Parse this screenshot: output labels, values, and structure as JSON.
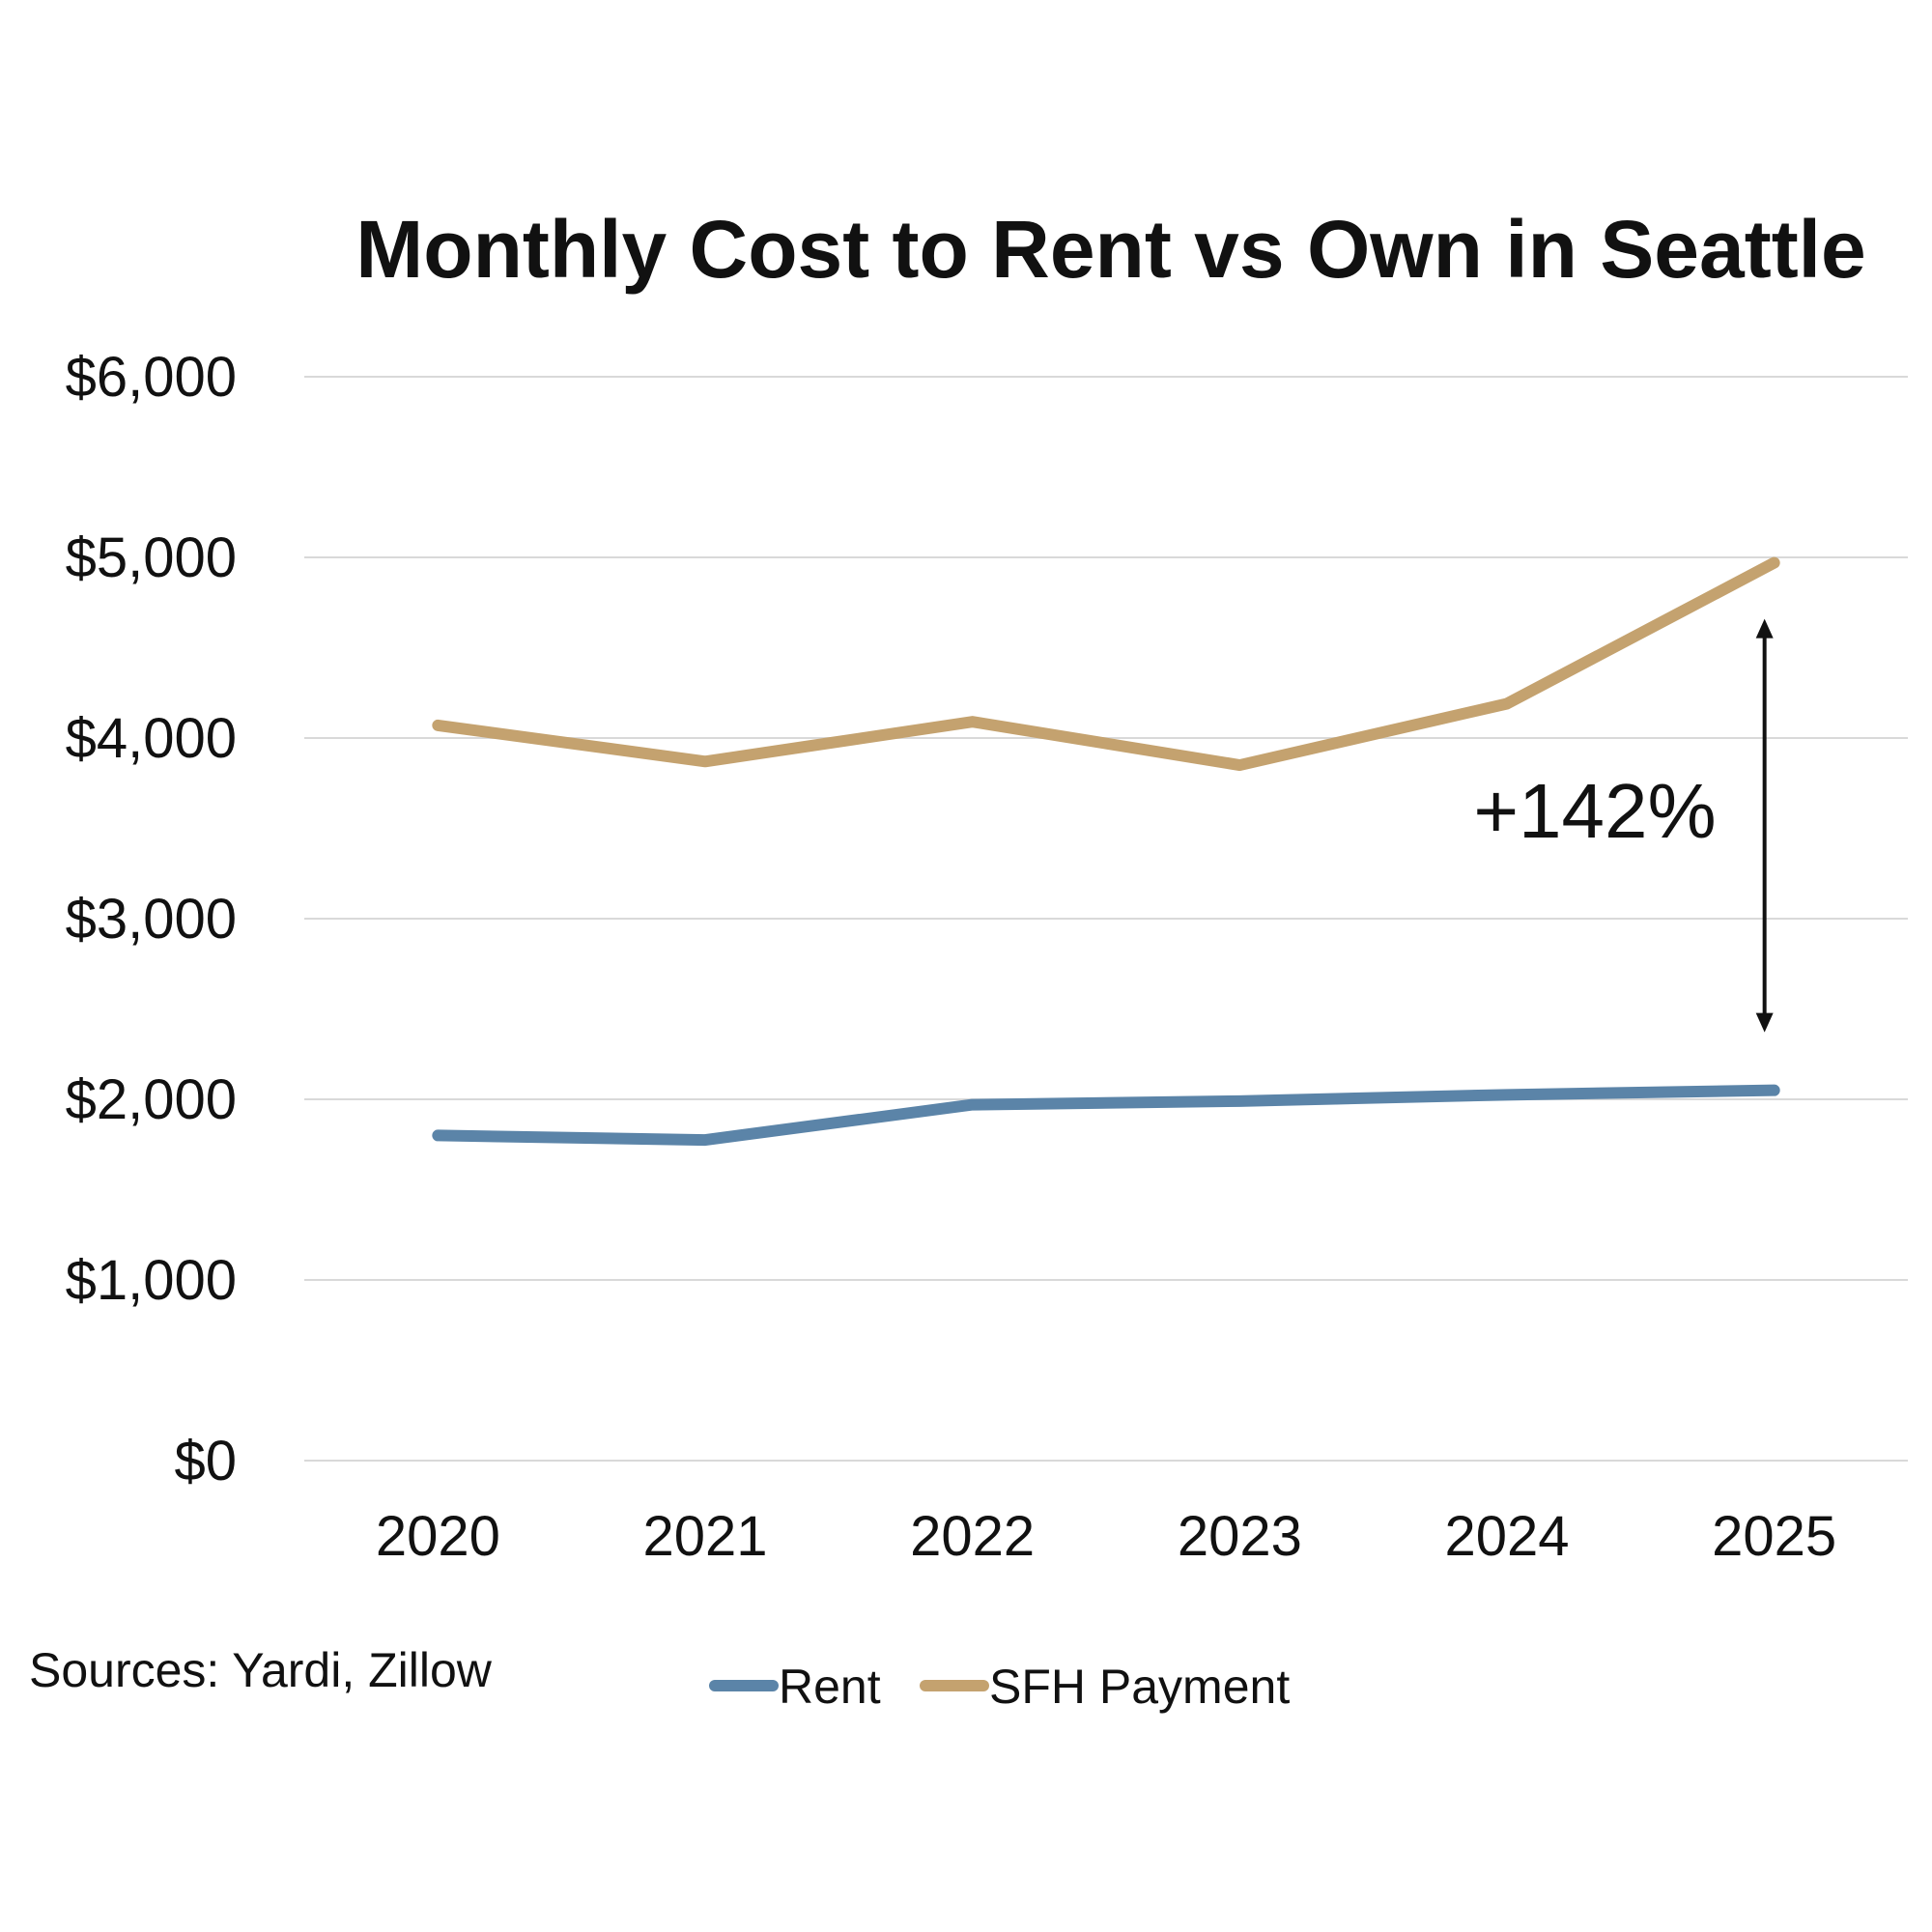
{
  "chart_data": {
    "type": "line",
    "title": "Monthly Cost to Rent vs Own in Seattle",
    "xlabel": "",
    "ylabel": "",
    "categories": [
      "2020",
      "2021",
      "2022",
      "2023",
      "2024",
      "2025"
    ],
    "series": [
      {
        "name": "Rent",
        "color": "#5b84a8",
        "values": [
          1800,
          1775,
          1970,
          1990,
          2025,
          2050
        ]
      },
      {
        "name": "SFH Payment",
        "color": "#c4a26f",
        "values": [
          4070,
          3870,
          4090,
          3850,
          4190,
          4970
        ]
      }
    ],
    "ylim": [
      0,
      6000
    ],
    "yticks": [
      0,
      1000,
      2000,
      3000,
      4000,
      5000,
      6000
    ],
    "ytick_labels": [
      "$0",
      "$1,000",
      "$2,000",
      "$3,000",
      "$4,000",
      "$5,000",
      "$6,000"
    ],
    "grid": true,
    "legend_position": "bottom",
    "annotation": {
      "text": "+142%",
      "at": "2025",
      "from": 2050,
      "to": 4970
    },
    "source": "Sources: Yardi, Zillow"
  }
}
